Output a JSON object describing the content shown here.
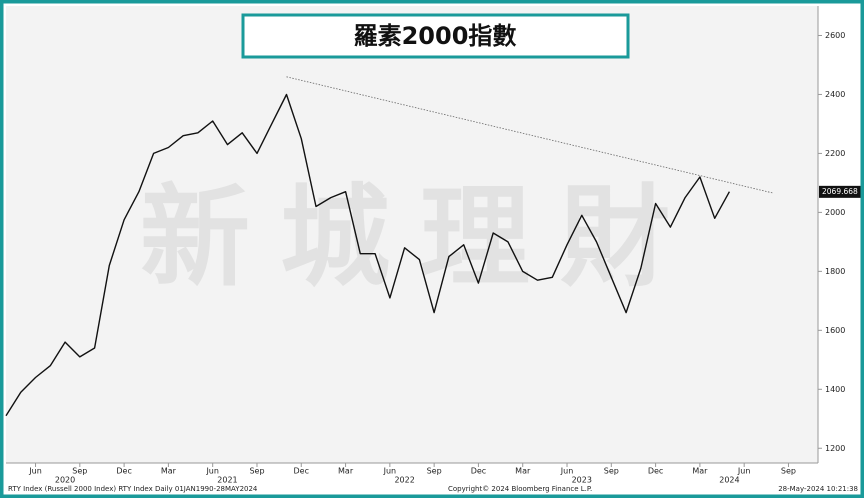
{
  "chart_data": {
    "type": "line",
    "title": "羅素2000指數",
    "watermark": "新城理財",
    "x": [
      "2020-04",
      "2020-05",
      "2020-06",
      "2020-07",
      "2020-08",
      "2020-09",
      "2020-10",
      "2020-11",
      "2020-12",
      "2021-01",
      "2021-02",
      "2021-03",
      "2021-04",
      "2021-05",
      "2021-06",
      "2021-07",
      "2021-08",
      "2021-09",
      "2021-10",
      "2021-11",
      "2021-12",
      "2022-01",
      "2022-02",
      "2022-03",
      "2022-04",
      "2022-05",
      "2022-06",
      "2022-07",
      "2022-08",
      "2022-09",
      "2022-10",
      "2022-11",
      "2022-12",
      "2023-01",
      "2023-02",
      "2023-03",
      "2023-04",
      "2023-05",
      "2023-06",
      "2023-07",
      "2023-08",
      "2023-09",
      "2023-10",
      "2023-11",
      "2023-12",
      "2024-01",
      "2024-02",
      "2024-03",
      "2024-04",
      "2024-05"
    ],
    "values": [
      1310,
      1390,
      1440,
      1480,
      1560,
      1510,
      1540,
      1820,
      1975,
      2070,
      2200,
      2220,
      2260,
      2270,
      2310,
      2230,
      2270,
      2200,
      2300,
      2400,
      2250,
      2020,
      2050,
      2070,
      1860,
      1860,
      1710,
      1880,
      1840,
      1660,
      1850,
      1890,
      1760,
      1930,
      1900,
      1800,
      1770,
      1780,
      1890,
      1990,
      1900,
      1780,
      1660,
      1810,
      2030,
      1950,
      2050,
      2120,
      1980,
      2070
    ],
    "color": "#111111",
    "trendline": {
      "x": [
        "2021-11",
        "2024-08"
      ],
      "values": [
        2460,
        2065
      ]
    },
    "last_value": 2069.668,
    "xlim": [
      "2020-04",
      "2024-11"
    ],
    "ylim": [
      1150,
      2700
    ],
    "yticks": [
      1200,
      1400,
      1600,
      1800,
      2000,
      2200,
      2400,
      2600
    ],
    "xticks": [
      {
        "value": "2020-06",
        "label": "Jun"
      },
      {
        "value": "2020-09",
        "label": "Sep"
      },
      {
        "value": "2020-12",
        "label": "Dec"
      },
      {
        "value": "2021-03",
        "label": "Mar"
      },
      {
        "value": "2021-06",
        "label": "Jun"
      },
      {
        "value": "2021-09",
        "label": "Sep"
      },
      {
        "value": "2021-12",
        "label": "Dec"
      },
      {
        "value": "2022-03",
        "label": "Mar"
      },
      {
        "value": "2022-06",
        "label": "Jun"
      },
      {
        "value": "2022-09",
        "label": "Sep"
      },
      {
        "value": "2022-12",
        "label": "Dec"
      },
      {
        "value": "2023-03",
        "label": "Mar"
      },
      {
        "value": "2023-06",
        "label": "Jun"
      },
      {
        "value": "2023-09",
        "label": "Sep"
      },
      {
        "value": "2023-12",
        "label": "Dec"
      },
      {
        "value": "2024-03",
        "label": "Mar"
      },
      {
        "value": "2024-06",
        "label": "Jun"
      },
      {
        "value": "2024-09",
        "label": "Sep"
      }
    ],
    "year_ticks": [
      {
        "value": "2020-08",
        "label": "2020"
      },
      {
        "value": "2021-07",
        "label": "2021"
      },
      {
        "value": "2022-07",
        "label": "2022"
      },
      {
        "value": "2023-07",
        "label": "2023"
      },
      {
        "value": "2024-05",
        "label": "2024"
      }
    ],
    "grid": false,
    "footer": {
      "source": "RTY Index (Russell 2000 Index) RTY Index  Daily 01JAN1990-28MAY2024",
      "copyright": "Copyright© 2024 Bloomberg Finance L.P.",
      "timestamp": "28-May-2024 10:21:38"
    }
  }
}
